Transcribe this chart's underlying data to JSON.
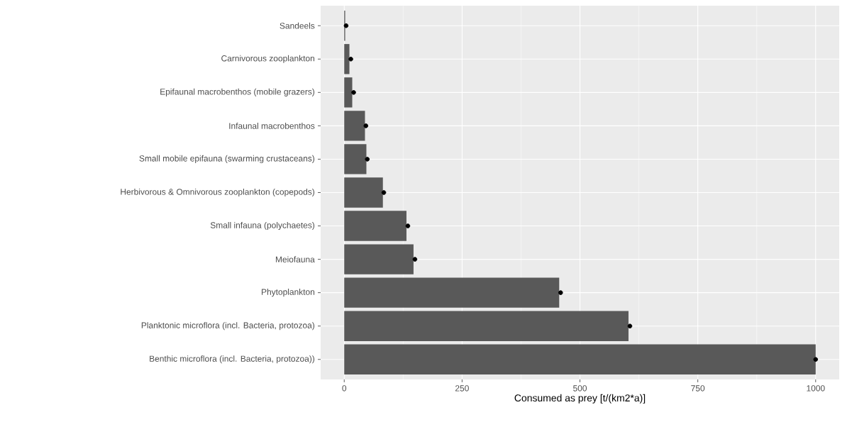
{
  "chart_data": {
    "type": "bar",
    "orientation": "horizontal",
    "xlabel": "Consumed as prey [t/(km2*a)]",
    "categories": [
      "Sandeels",
      "Carnivorous zooplankton",
      "Epifaunal macrobenthos (mobile grazers)",
      "Infaunal macrobenthos",
      "Small mobile epifauna (swarming crustaceans)",
      "Herbivorous & Omnivorous zooplankton (copepods)",
      "Small infauna (polychaetes)",
      "Meiofauna",
      "Phytoplankton",
      "Planktonic microflora (incl. Bacteria, protozoa)",
      "Benthic microflora (incl. Bacteria, protozoa))"
    ],
    "series": [
      {
        "color": "#595959",
        "values": [
          2,
          11,
          17,
          44,
          47,
          82,
          132,
          147,
          456,
          603,
          1000
        ]
      },
      {
        "type": "scatter",
        "color": "#000000",
        "marker": "circle",
        "values": [
          4,
          14,
          20,
          46,
          49,
          84,
          135,
          150,
          459,
          606,
          1000
        ]
      }
    ],
    "xlim": [
      -50,
      1050
    ],
    "xticks": [
      0,
      250,
      500,
      750,
      1000
    ],
    "grid": true
  }
}
